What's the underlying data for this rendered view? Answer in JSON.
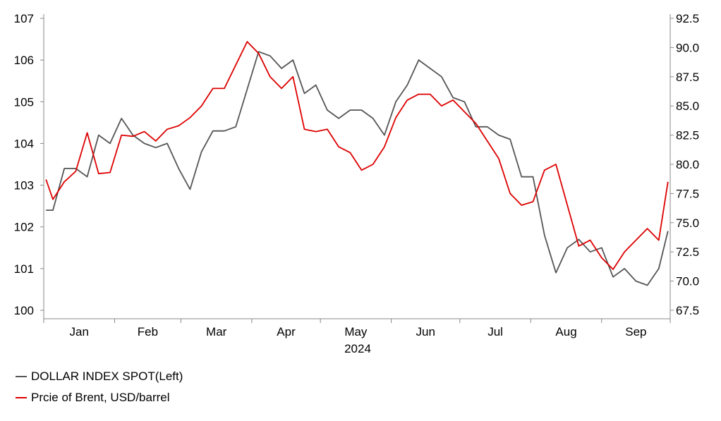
{
  "chart_data": {
    "type": "line",
    "title": "",
    "xlabel": "2024",
    "x_months": [
      "Jan",
      "Feb",
      "Mar",
      "Apr",
      "May",
      "Jun",
      "Jul",
      "Aug",
      "Sep"
    ],
    "y_left": {
      "ylim": [
        100,
        107
      ],
      "ticks": [
        "100",
        "101",
        "102",
        "103",
        "104",
        "105",
        "106",
        "107"
      ]
    },
    "y_right": {
      "ylim": [
        67.5,
        92.5
      ],
      "ticks": [
        "67.5",
        "70.0",
        "72.5",
        "75.0",
        "77.5",
        "80.0",
        "82.5",
        "85.0",
        "87.5",
        "90.0",
        "92.5"
      ]
    },
    "grid": false,
    "legend_position": "bottom-left",
    "x": [
      "2024-01-02",
      "2024-01-05",
      "2024-01-10",
      "2024-01-15",
      "2024-01-20",
      "2024-01-25",
      "2024-01-30",
      "2024-02-04",
      "2024-02-09",
      "2024-02-14",
      "2024-02-19",
      "2024-02-24",
      "2024-02-29",
      "2024-03-05",
      "2024-03-10",
      "2024-03-15",
      "2024-03-20",
      "2024-03-25",
      "2024-03-30",
      "2024-04-04",
      "2024-04-09",
      "2024-04-14",
      "2024-04-19",
      "2024-04-24",
      "2024-04-29",
      "2024-05-04",
      "2024-05-09",
      "2024-05-14",
      "2024-05-19",
      "2024-05-24",
      "2024-05-29",
      "2024-06-03",
      "2024-06-08",
      "2024-06-13",
      "2024-06-18",
      "2024-06-23",
      "2024-06-28",
      "2024-07-03",
      "2024-07-08",
      "2024-07-13",
      "2024-07-18",
      "2024-07-23",
      "2024-07-28",
      "2024-08-02",
      "2024-08-07",
      "2024-08-12",
      "2024-08-17",
      "2024-08-22",
      "2024-08-27",
      "2024-09-01",
      "2024-09-06",
      "2024-09-11",
      "2024-09-16",
      "2024-09-21",
      "2024-09-26",
      "2024-09-30"
    ],
    "series": [
      {
        "name": "DOLLAR INDEX SPOT(Left)",
        "axis": "left",
        "color": "#555555",
        "values": [
          102.4,
          102.4,
          103.4,
          103.4,
          103.2,
          104.2,
          104.0,
          104.6,
          104.2,
          104.0,
          103.9,
          104.0,
          103.4,
          102.9,
          103.8,
          104.3,
          104.3,
          104.4,
          105.3,
          106.2,
          106.1,
          105.8,
          106.0,
          105.2,
          105.4,
          104.8,
          104.6,
          104.8,
          104.8,
          104.6,
          104.2,
          105.0,
          105.4,
          106.0,
          105.8,
          105.6,
          105.1,
          105.0,
          104.4,
          104.4,
          104.2,
          104.1,
          103.2,
          103.2,
          101.8,
          100.9,
          101.5,
          101.7,
          101.4,
          101.5,
          100.8,
          101.0,
          100.7,
          100.6,
          101.0,
          101.9
        ]
      },
      {
        "name": "Prcie of Brent, USD/barrel",
        "axis": "right",
        "color": "#dd0000",
        "values": [
          78.7,
          77.0,
          78.5,
          79.4,
          82.7,
          79.2,
          79.3,
          82.5,
          82.4,
          82.8,
          82.0,
          83.0,
          83.3,
          84.0,
          85.0,
          86.5,
          86.5,
          88.5,
          90.5,
          89.5,
          87.5,
          86.5,
          87.5,
          83.0,
          82.8,
          83.0,
          81.5,
          81.0,
          79.5,
          80.0,
          81.5,
          84.0,
          85.5,
          86.0,
          86.0,
          85.0,
          85.5,
          84.5,
          83.5,
          82.0,
          80.5,
          77.5,
          76.5,
          76.8,
          79.5,
          80.0,
          76.5,
          73.0,
          73.5,
          72.0,
          71.0,
          72.5,
          73.5,
          74.5,
          73.5,
          78.5
        ]
      }
    ]
  },
  "legend": [
    {
      "label": "DOLLAR INDEX SPOT(Left)",
      "color": "#555555"
    },
    {
      "label": "Prcie of Brent, USD/barrel",
      "color": "#dd0000"
    }
  ]
}
